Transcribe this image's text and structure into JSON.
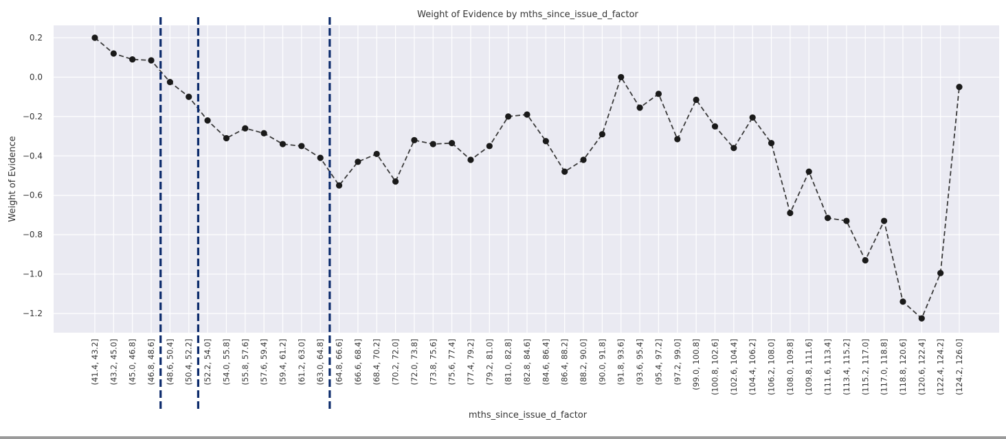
{
  "chart_data": {
    "type": "line",
    "title": "Weight of Evidence by mths_since_issue_d_factor",
    "xlabel": "mths_since_issue_d_factor",
    "ylabel": "Weight of Evidence",
    "ylim": [
      -1.3,
      0.26
    ],
    "yticks": [
      0.2,
      0.0,
      -0.2,
      -0.4,
      -0.6,
      -0.8,
      -1.0,
      -1.2
    ],
    "ytick_labels": [
      "0.2",
      "0.0",
      "−0.2",
      "−0.4",
      "−0.6",
      "−0.8",
      "−1.0",
      "−1.2"
    ],
    "grid": true,
    "line_style": "dashed",
    "marker": "circle",
    "colors": {
      "background": "#eaeaf2",
      "line": "#3a3a3a",
      "marker": "#1a1a1a",
      "vline": "#0b2a6b",
      "grid": "#ffffff"
    },
    "categories": [
      "(41.4, 43.2]",
      "(43.2, 45.0]",
      "(45.0, 46.8]",
      "(46.8, 48.6]",
      "(48.6, 50.4]",
      "(50.4, 52.2]",
      "(52.2, 54.0]",
      "(54.0, 55.8]",
      "(55.8, 57.6]",
      "(57.6, 59.4]",
      "(59.4, 61.2]",
      "(61.2, 63.0]",
      "(63.0, 64.8]",
      "(64.8, 66.6]",
      "(66.6, 68.4]",
      "(68.4, 70.2]",
      "(70.2, 72.0]",
      "(72.0, 73.8]",
      "(73.8, 75.6]",
      "(75.6, 77.4]",
      "(77.4, 79.2]",
      "(79.2, 81.0]",
      "(81.0, 82.8]",
      "(82.8, 84.6]",
      "(84.6, 86.4]",
      "(86.4, 88.2]",
      "(88.2, 90.0]",
      "(90.0, 91.8]",
      "(91.8, 93.6]",
      "(93.6, 95.4]",
      "(95.4, 97.2]",
      "(97.2, 99.0]",
      "(99.0, 100.8]",
      "(100.8, 102.6]",
      "(102.6, 104.4]",
      "(104.4, 106.2]",
      "(106.2, 108.0]",
      "(108.0, 109.8]",
      "(109.8, 111.6]",
      "(111.6, 113.4]",
      "(113.4, 115.2]",
      "(115.2, 117.0]",
      "(117.0, 118.8]",
      "(118.8, 120.6]",
      "(120.6, 122.4]",
      "(122.4, 124.2]",
      "(124.2, 126.0]"
    ],
    "values": [
      0.2,
      0.12,
      0.09,
      0.085,
      -0.025,
      -0.1,
      -0.22,
      -0.31,
      -0.26,
      -0.285,
      -0.34,
      -0.35,
      -0.41,
      -0.55,
      -0.43,
      -0.39,
      -0.53,
      -0.32,
      -0.34,
      -0.335,
      -0.42,
      -0.35,
      -0.2,
      -0.19,
      -0.325,
      -0.48,
      -0.42,
      -0.29,
      0.0,
      -0.155,
      -0.085,
      -0.315,
      -0.115,
      -0.25,
      -0.36,
      -0.205,
      -0.335,
      -0.69,
      -0.48,
      -0.715,
      -0.73,
      -0.93,
      -0.73,
      -1.14,
      -1.225,
      -0.995,
      -0.05
    ],
    "vlines_between": [
      3.5,
      5.5,
      12.5
    ]
  }
}
